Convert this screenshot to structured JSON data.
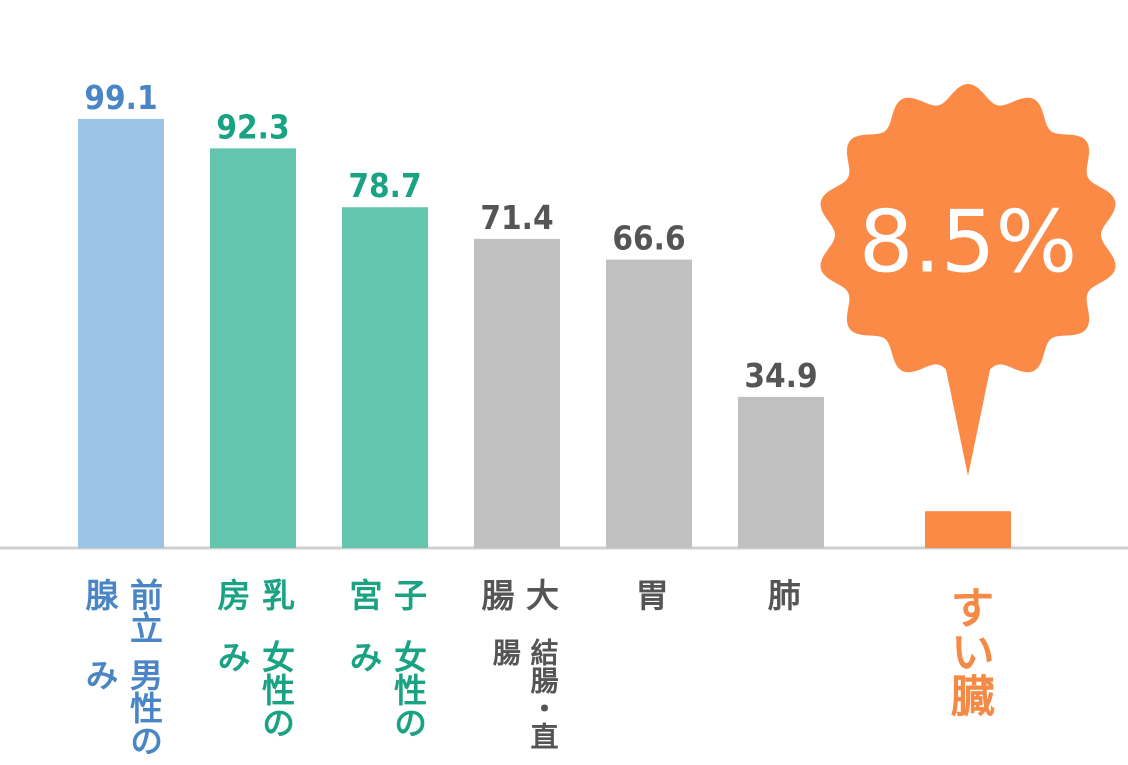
{
  "chart_data": {
    "type": "bar",
    "categories": [
      "前立腺",
      "乳房",
      "子宮",
      "大腸",
      "胃",
      "肺",
      "すい臓"
    ],
    "sublabels": [
      "男性のみ",
      "女性のみ",
      "女性のみ",
      "結腸・直腸",
      null,
      null,
      null
    ],
    "values": [
      99.1,
      92.3,
      78.7,
      71.4,
      66.6,
      34.9,
      8.5
    ],
    "value_labels": [
      "99.1",
      "92.3",
      "78.7",
      "71.4",
      "66.6",
      "34.9",
      "8.5%"
    ],
    "colors": [
      "#9dc3e6",
      "#63c5ae",
      "#63c5ae",
      "#c0c0c0",
      "#c0c0c0",
      "#c0c0c0",
      "#fb8a46"
    ],
    "label_colors": [
      "#4a86c5",
      "#1aa383",
      "#1aa383",
      "#555555",
      "#555555",
      "#555555",
      "#f58a46"
    ]
  }
}
